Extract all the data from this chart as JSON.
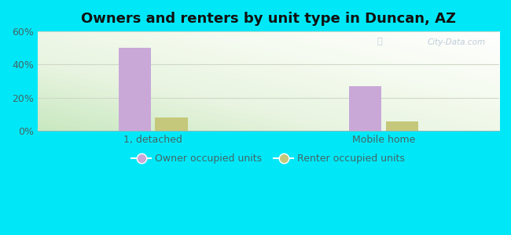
{
  "title": "Owners and renters by unit type in Duncan, AZ",
  "categories": [
    "1, detached",
    "Mobile home"
  ],
  "owner_values": [
    50,
    27
  ],
  "renter_values": [
    8,
    6
  ],
  "owner_color": "#c9a8d8",
  "renter_color": "#c5c87a",
  "ylim": [
    0,
    60
  ],
  "yticks": [
    0,
    20,
    40,
    60
  ],
  "ytick_labels": [
    "0%",
    "20%",
    "40%",
    "60%"
  ],
  "legend_owner": "Owner occupied units",
  "legend_renter": "Renter occupied units",
  "bar_width": 0.28,
  "group_centers": [
    1.0,
    3.0
  ],
  "xlim": [
    0.0,
    4.0
  ],
  "outer_bg": "#00e8f8",
  "grid_color": "#d0d8c8",
  "watermark": "City-Data.com",
  "title_fontsize": 13,
  "tick_fontsize": 9,
  "legend_fontsize": 9,
  "tick_color": "#446666"
}
